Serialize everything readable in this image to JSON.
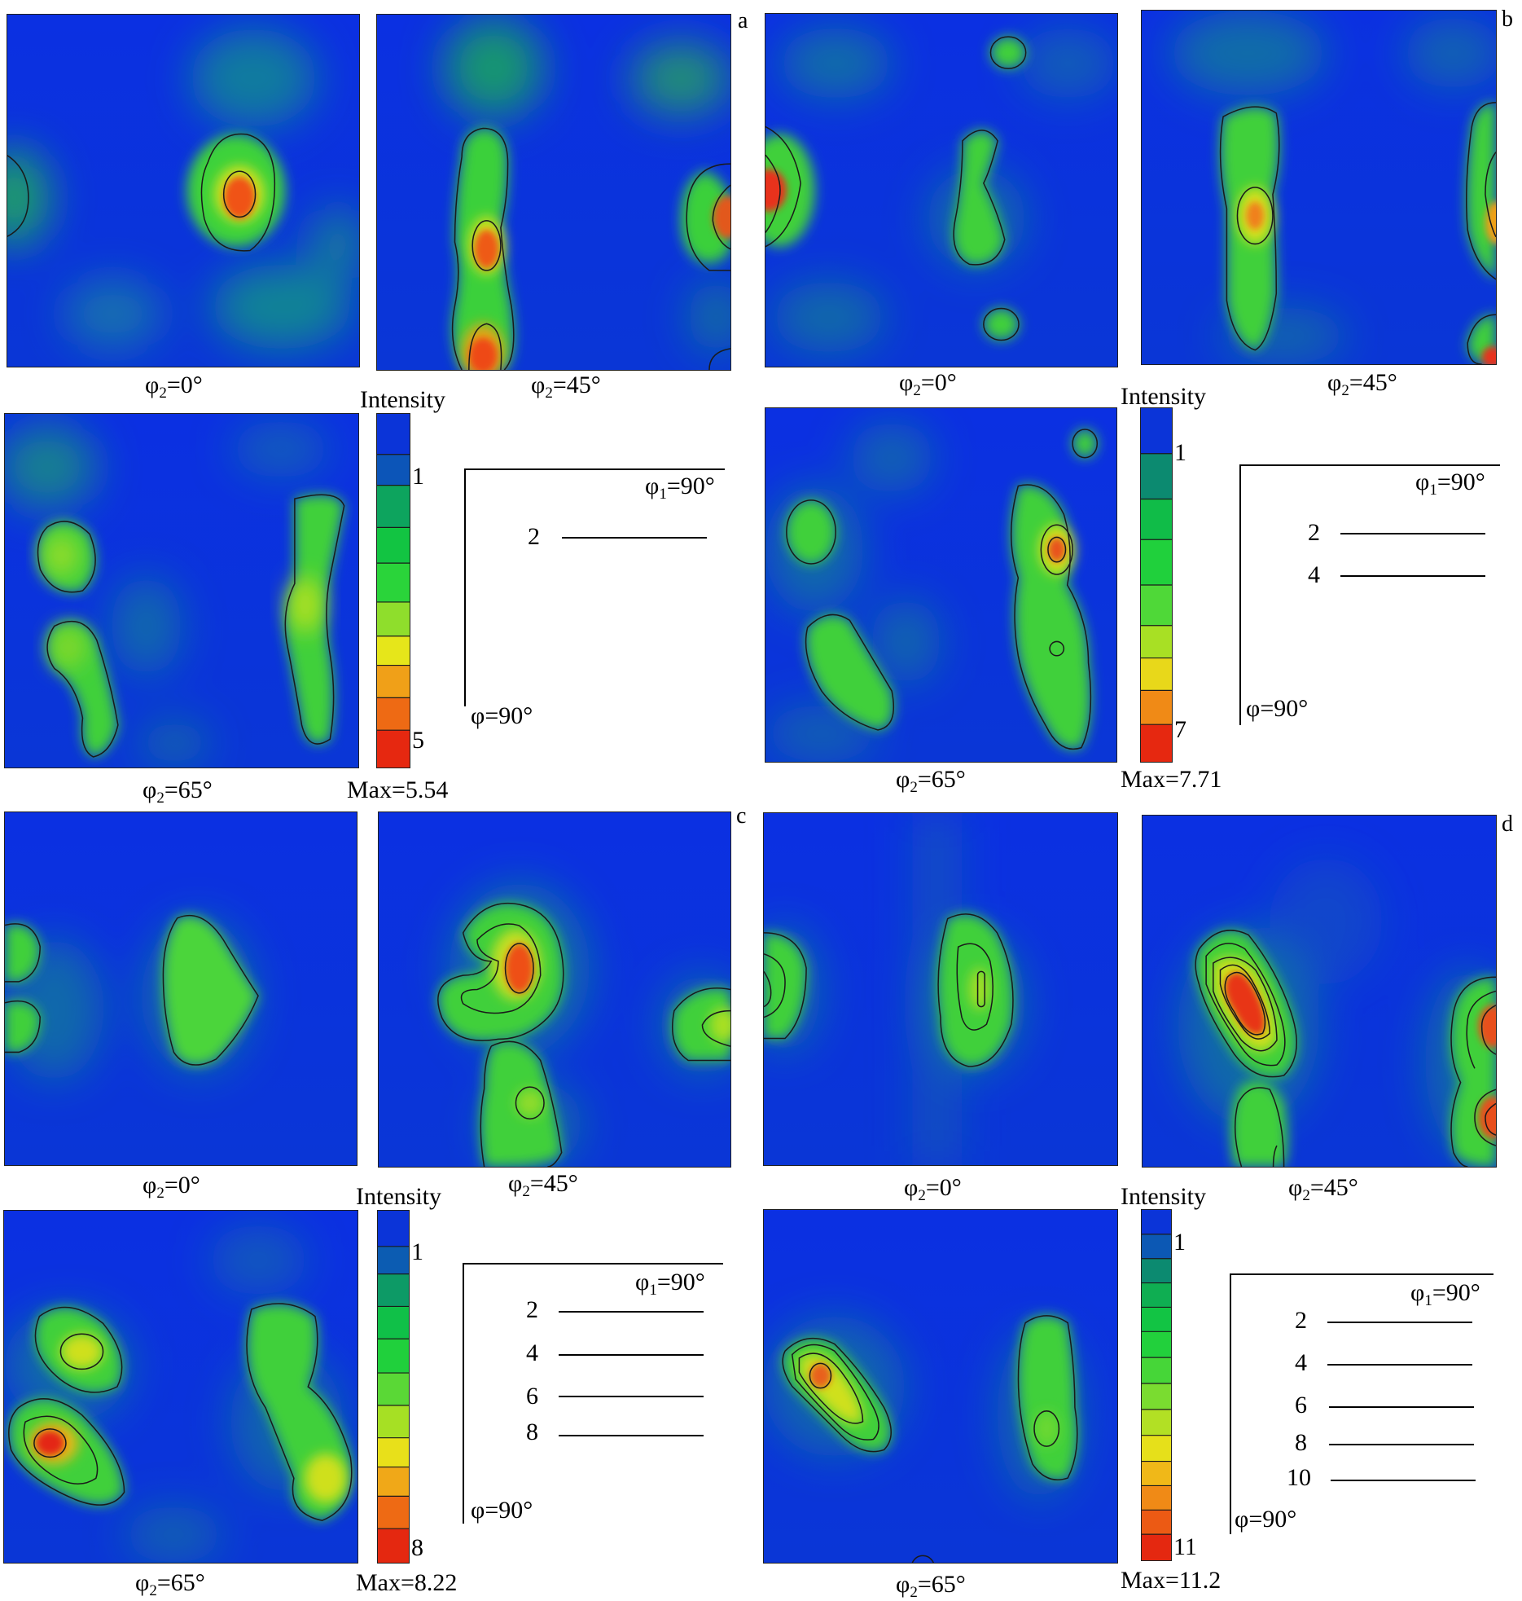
{
  "panels": [
    {
      "letter": "a",
      "sections": [
        {
          "phi2": "φ",
          "sub": "2",
          "val": "=0°",
          "type": "a0"
        },
        {
          "phi2": "φ",
          "sub": "2",
          "val": "=45°",
          "type": "a45"
        },
        {
          "phi2": "φ",
          "sub": "2",
          "val": "=65°",
          "type": "a65"
        }
      ],
      "colorbar": {
        "title": "Intensity",
        "tick_low": "1",
        "tick_high": "5",
        "max": "Max=5.54"
      },
      "legend": {
        "phi1": "φ",
        "phi1_sub": "1",
        "phi1_val": "=90°",
        "phi": "φ=90°",
        "levels": [
          "2"
        ]
      }
    },
    {
      "letter": "b",
      "sections": [
        {
          "phi2": "φ",
          "sub": "2",
          "val": "=0°",
          "type": "b0"
        },
        {
          "phi2": "φ",
          "sub": "2",
          "val": "=45°",
          "type": "b45"
        },
        {
          "phi2": "φ",
          "sub": "2",
          "val": "=65°",
          "type": "b65"
        }
      ],
      "colorbar": {
        "title": "Intensity",
        "tick_low": "1",
        "tick_high": "7",
        "max": "Max=7.71"
      },
      "legend": {
        "phi1": "φ",
        "phi1_sub": "1",
        "phi1_val": "=90°",
        "phi": "φ=90°",
        "levels": [
          "2",
          "4"
        ]
      }
    },
    {
      "letter": "c",
      "sections": [
        {
          "phi2": "φ",
          "sub": "2",
          "val": "=0°",
          "type": "c0"
        },
        {
          "phi2": "φ",
          "sub": "2",
          "val": "=45°",
          "type": "c45"
        },
        {
          "phi2": "φ",
          "sub": "2",
          "val": "=65°",
          "type": "c65"
        }
      ],
      "colorbar": {
        "title": "Intensity",
        "tick_low": "1",
        "tick_high": "8",
        "max": "Max=8.22"
      },
      "legend": {
        "phi1": "φ",
        "phi1_sub": "1",
        "phi1_val": "=90°",
        "phi": "φ=90°",
        "levels": [
          "2",
          "4",
          "6",
          "8"
        ]
      }
    },
    {
      "letter": "d",
      "sections": [
        {
          "phi2": "φ",
          "sub": "2",
          "val": "=0°",
          "type": "d0"
        },
        {
          "phi2": "φ",
          "sub": "2",
          "val": "=45°",
          "type": "d45"
        },
        {
          "phi2": "φ",
          "sub": "2",
          "val": "=65°",
          "type": "d65"
        }
      ],
      "colorbar": {
        "title": "Intensity",
        "tick_low": "1",
        "tick_high": "11",
        "max": "Max=11.2"
      },
      "legend": {
        "phi1": "φ",
        "phi1_sub": "1",
        "phi1_val": "=90°",
        "phi": "φ=90°",
        "levels": [
          "2",
          "4",
          "6",
          "8",
          "10"
        ]
      }
    }
  ],
  "colors": {
    "background": "#0a3bd6",
    "low": "#0b2fe0",
    "mid": "#2fd23a",
    "high": "#e02020",
    "contour": "#1a1a1a"
  }
}
